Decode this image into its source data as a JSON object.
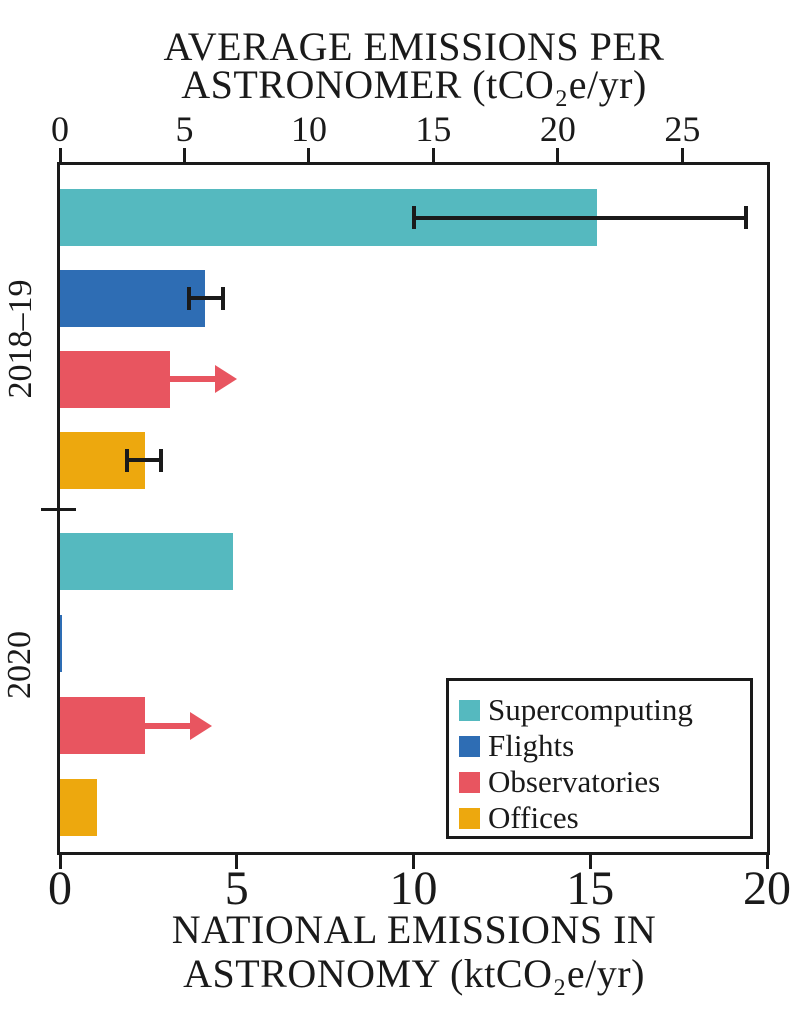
{
  "chart_data": {
    "type": "bar",
    "orientation": "horizontal",
    "categories": [
      "Supercomputing",
      "Flights",
      "Observatories",
      "Offices"
    ],
    "colors": [
      "#55b9bf",
      "#2e6db4",
      "#e85560",
      "#eda80e"
    ],
    "axis_color": "#1a1a1a",
    "background_color": "#ffffff",
    "top_axis": {
      "title_line1": "AVERAGE EMISSIONS PER",
      "title_line2": "ASTRONOMER (tCO₂e/yr)",
      "ticks": [
        0,
        5,
        10,
        15,
        20,
        25
      ],
      "max": 28.4,
      "side": "top"
    },
    "bottom_axis": {
      "title_line1": "NATIONAL EMISSIONS IN",
      "title_line2": "ASTRONOMY (ktCO₂e/yr)",
      "ticks": [
        0,
        5,
        10,
        15,
        20
      ],
      "max": 20,
      "side": "bottom"
    },
    "groups": [
      {
        "label": "2018–19",
        "bars": [
          {
            "category": "Supercomputing",
            "value": 15.2,
            "error": [
              10.0,
              19.4
            ]
          },
          {
            "category": "Flights",
            "value": 4.1,
            "error": [
              3.65,
              4.6
            ]
          },
          {
            "category": "Observatories",
            "value": 3.1,
            "lower_limit_arrow_to": 5.0
          },
          {
            "category": "Offices",
            "value": 2.4,
            "error": [
              1.9,
              2.85
            ]
          }
        ]
      },
      {
        "label": "2020",
        "bars": [
          {
            "category": "Supercomputing",
            "value": 4.9
          },
          {
            "category": "Flights",
            "value": 0.05
          },
          {
            "category": "Observatories",
            "value": 2.4,
            "lower_limit_arrow_to": 4.3
          },
          {
            "category": "Offices",
            "value": 1.05
          }
        ]
      }
    ],
    "legend": {
      "position": "lower right",
      "entries": [
        "Supercomputing",
        "Flights",
        "Observatories",
        "Offices"
      ]
    },
    "grid": false
  }
}
